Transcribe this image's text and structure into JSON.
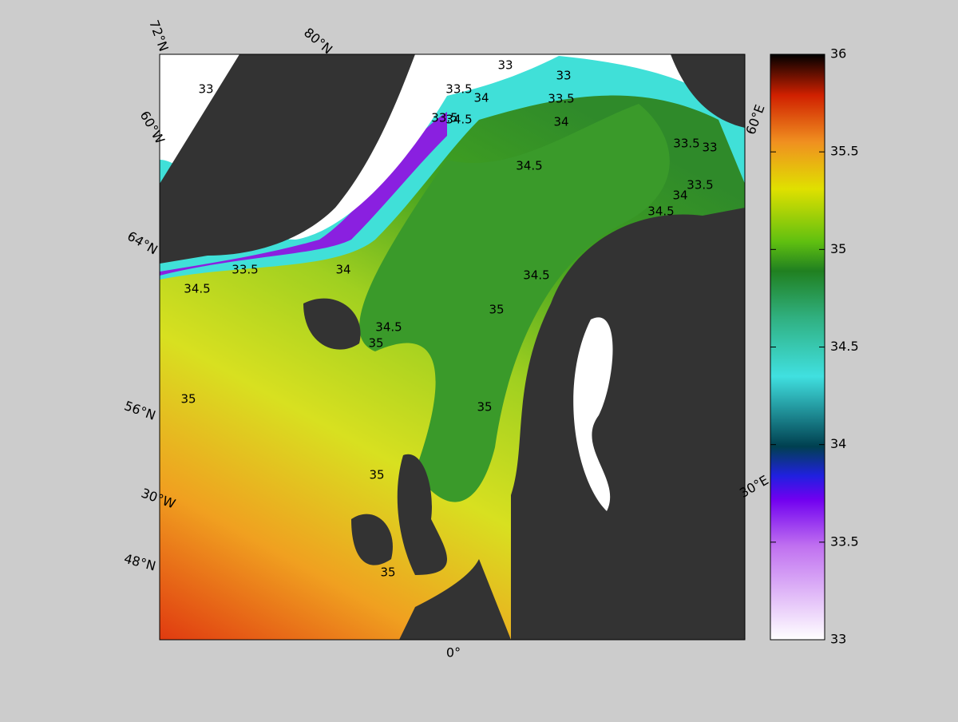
{
  "map": {
    "graticule_labels": [
      "72°N",
      "80°N",
      "60°W",
      "60°E",
      "64°N",
      "56°N",
      "30°W",
      "30°E",
      "48°N",
      "0°"
    ],
    "contour_labels": [
      "33",
      "33",
      "33",
      "33.5",
      "34",
      "33.5",
      "34.5",
      "33.5",
      "34",
      "34.5",
      "33.5",
      "33",
      "34.5",
      "34",
      "33.5",
      "33.5",
      "34",
      "34.5",
      "34.5",
      "35",
      "34.5",
      "35",
      "35",
      "35",
      "35",
      "35"
    ],
    "colorbar": {
      "lim": [
        33,
        36
      ],
      "ticks": [
        33,
        33.5,
        34,
        34.5,
        35,
        35.5,
        36
      ]
    }
  }
}
